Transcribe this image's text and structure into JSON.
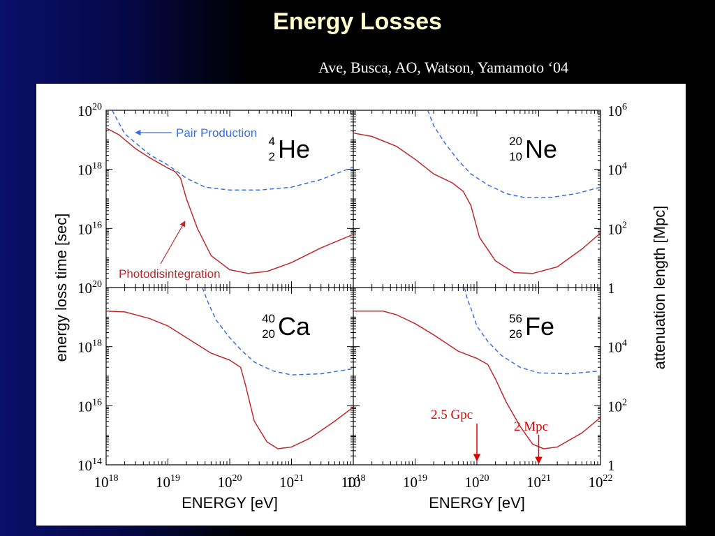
{
  "slide": {
    "title": "Energy Losses",
    "citation": "Ave, Busca, AO, Watson, Yamamoto ‘04"
  },
  "colors": {
    "background": "#000000",
    "title": "#ffffcc",
    "photodisintegration": "#c0282a",
    "pair_production": "#3a6fe0",
    "annotation": "#e00000"
  },
  "chart_data": {
    "type": "line",
    "layout": "2x2 panels, shared axes",
    "xlabel": "ENERGY   [eV]",
    "ylabel_left": "energy loss time   [sec]",
    "ylabel_right": "attenuation length  [Mpc]",
    "x_scale": "log",
    "y_scale": "log",
    "xlim": [
      1e+18,
      1e+22
    ],
    "ylim_left": [
      100000000000000.0,
      1e+20
    ],
    "ylim_right": [
      1,
      1000000.0
    ],
    "x_ticks": {
      "values": [
        1e+18,
        1e+19,
        1e+20,
        1e+21,
        1e+22
      ],
      "left_panels": [
        {
          "b": "10",
          "e": "18"
        },
        {
          "b": "10",
          "e": "19"
        },
        {
          "b": "10",
          "e": "20"
        },
        {
          "b": "10",
          "e": "21"
        },
        {
          "b": "10",
          "e": ""
        }
      ],
      "right_panels": [
        {
          "b": "10",
          "e": "18"
        },
        {
          "b": "10",
          "e": "19"
        },
        {
          "b": "10",
          "e": "20"
        },
        {
          "b": "10",
          "e": "21"
        },
        {
          "b": "10",
          "e": "22"
        }
      ]
    },
    "y_ticks_left": {
      "values": [
        100000000000000.0,
        1e+16,
        1e+18,
        1e+20
      ],
      "labels": [
        {
          "b": "10",
          "e": "14"
        },
        {
          "b": "10",
          "e": "16"
        },
        {
          "b": "10",
          "e": "18"
        },
        {
          "b": "10",
          "e": "20"
        }
      ]
    },
    "y_ticks_right": {
      "values": [
        1,
        100.0,
        10000.0,
        1000000.0
      ],
      "labels": [
        {
          "b": "1",
          "e": ""
        },
        {
          "b": "10",
          "e": "2"
        },
        {
          "b": "10",
          "e": "4"
        },
        {
          "b": "10",
          "e": "6"
        }
      ]
    },
    "panels": [
      {
        "nucleus": {
          "mass": "4",
          "charge": "2",
          "symbol": "He"
        },
        "series": [
          {
            "name": "Pair Production",
            "style": "dashed",
            "color": "#3a6fe0",
            "x": [
              1.25e+18,
              2e+18,
              5e+18,
              1e+19,
              2e+19,
              4e+19,
              1e+20,
              3e+20,
              1e+21,
              3e+21,
              1e+22
            ],
            "y": [
              1e+20,
              1.6e+19,
              3.2e+18,
              1.4e+18,
              5e+17,
              2.5e+17,
              2e+17,
              2e+17,
              2.5e+17,
              4.5e+17,
              1.2e+18
            ]
          },
          {
            "name": "Photodisintegration",
            "style": "solid",
            "color": "#c0282a",
            "x": [
              1e+18,
              1.6e+18,
              3e+18,
              5e+18,
              1e+19,
              1.3e+19,
              1.6e+19,
              2e+19,
              3e+19,
              5e+19,
              1e+20,
              2e+20,
              4e+20,
              1e+21,
              3e+21,
              1e+22
            ],
            "y": [
              2.5e+19,
              1.5e+19,
              5e+18,
              2.5e+18,
              1.1e+18,
              8.5e+17,
              5e+17,
              1e+17,
              1e+16,
              1200000000000000.0,
              400000000000000.0,
              300000000000000.0,
              350000000000000.0,
              700000000000000.0,
              2200000000000000.0,
              6300000000000000.0
            ]
          }
        ],
        "annotations": [
          {
            "text": "Pair Production"
          },
          {
            "text": "Photodisintegration"
          }
        ]
      },
      {
        "nucleus": {
          "mass": "20",
          "charge": "10",
          "symbol": "Ne"
        },
        "series": [
          {
            "name": "Pair Production",
            "style": "dashed",
            "color": "#3a6fe0",
            "x": [
              1.6e+19,
              2e+19,
              3e+19,
              5e+19,
              8e+19,
              1.5e+20,
              3e+20,
              6e+20,
              1.5e+21,
              4e+21,
              1e+22
            ],
            "y": [
              1e+20,
              3e+19,
              8e+18,
              2e+18,
              7e+17,
              3e+17,
              1.5e+17,
              1.1e+17,
              1.1e+17,
              1.5e+17,
              2.5e+17
            ]
          },
          {
            "name": "Photodisintegration",
            "style": "solid",
            "color": "#c0282a",
            "x": [
              1e+18,
              2e+18,
              5e+18,
              1e+19,
              2e+19,
              4e+19,
              6e+19,
              8e+19,
              1.1e+20,
              2e+20,
              4e+20,
              8e+20,
              2e+21,
              5e+21,
              1e+22
            ],
            "y": [
              1.7e+19,
              1.3e+19,
              6e+18,
              2.2e+18,
              7e+17,
              3.5e+17,
              1.8e+17,
              6e+16,
              5000000000000000.0,
              800000000000000.0,
              320000000000000.0,
              300000000000000.0,
              500000000000000.0,
              2000000000000000.0,
              7000000000000000.0
            ]
          }
        ],
        "annotations": []
      },
      {
        "nucleus": {
          "mass": "40",
          "charge": "20",
          "symbol": "Ca"
        },
        "series": [
          {
            "name": "Pair Production",
            "style": "dashed",
            "color": "#3a6fe0",
            "x": [
              3.6e+19,
              4.5e+19,
              6e+19,
              1e+20,
              1.5e+20,
              2.5e+20,
              5e+20,
              1e+21,
              3e+21,
              1e+22
            ],
            "y": [
              1e+20,
              3e+19,
              8e+18,
              2e+18,
              8e+17,
              3e+17,
              1.5e+17,
              1.1e+17,
              1.2e+17,
              1.8e+17
            ]
          },
          {
            "name": "Photodisintegration",
            "style": "solid",
            "color": "#c0282a",
            "x": [
              1e+18,
              2e+18,
              5e+18,
              1e+19,
              2e+19,
              5e+19,
              1e+20,
              1.5e+20,
              1.8e+20,
              2.5e+20,
              4e+20,
              6e+20,
              1e+21,
              2e+21,
              5e+21,
              1e+22
            ],
            "y": [
              1.6e+19,
              1.5e+19,
              9e+18,
              5e+18,
              2e+18,
              6e+17,
              3.5e+17,
              2e+17,
              5e+16,
              3000000000000000.0,
              600000000000000.0,
              350000000000000.0,
              400000000000000.0,
              800000000000000.0,
              3000000000000000.0,
              9000000000000000.0
            ]
          }
        ],
        "annotations": []
      },
      {
        "nucleus": {
          "mass": "56",
          "charge": "26",
          "symbol": "Fe"
        },
        "series": [
          {
            "name": "Pair Production",
            "style": "dashed",
            "color": "#3a6fe0",
            "x": [
              6.3e+19,
              7e+19,
              8e+19,
              1e+20,
              1.5e+20,
              2.5e+20,
              5e+20,
              1e+21,
              3e+21,
              1e+22
            ],
            "y": [
              1e+20,
              4e+19,
              2e+19,
              5e+18,
              1.5e+18,
              5e+17,
              2e+17,
              1.3e+17,
              1.2e+17,
              1.5e+17
            ]
          },
          {
            "name": "Photodisintegration",
            "style": "solid",
            "color": "#c0282a",
            "x": [
              1e+18,
              3e+18,
              5e+18,
              1e+19,
              2e+19,
              5e+19,
              1e+20,
              1.5e+20,
              2e+20,
              3e+20,
              5e+20,
              8e+20,
              1.2e+21,
              2e+21,
              5e+21,
              1e+22
            ],
            "y": [
              1.6e+19,
              1.6e+19,
              1.2e+19,
              6e+18,
              2.5e+18,
              7e+17,
              4e+17,
              2.5e+17,
              8e+16,
              1.3e+16,
              2000000000000000.0,
              500000000000000.0,
              350000000000000.0,
              400000000000000.0,
              1200000000000000.0,
              4000000000000000.0
            ]
          }
        ],
        "annotations": [
          {
            "text": "2.5 Gpc",
            "arrow_to_x": 1e+20
          },
          {
            "text": "2 Mpc",
            "arrow_to_x": 1e+21
          }
        ]
      }
    ]
  }
}
